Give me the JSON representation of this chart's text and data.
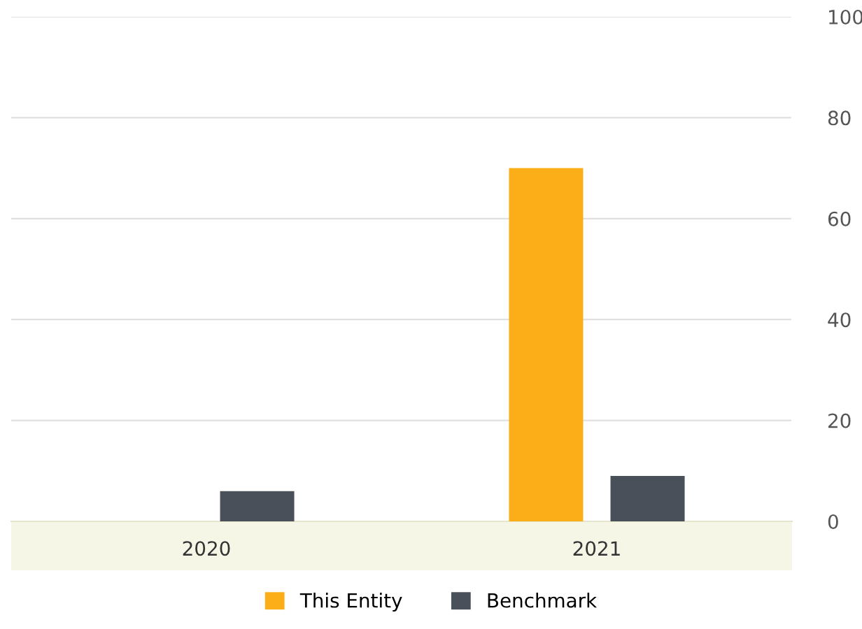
{
  "chart_data": {
    "type": "bar",
    "categories": [
      "2020",
      "2021"
    ],
    "series": [
      {
        "name": "This Entity",
        "color": "#fbae17",
        "values": [
          null,
          70
        ]
      },
      {
        "name": "Benchmark",
        "color": "#4a5059",
        "values": [
          6,
          9
        ]
      }
    ],
    "ylim": [
      0,
      100
    ],
    "yticks": [
      0,
      20,
      40,
      60,
      80,
      100
    ],
    "grid": "y",
    "legend": "bottom"
  }
}
